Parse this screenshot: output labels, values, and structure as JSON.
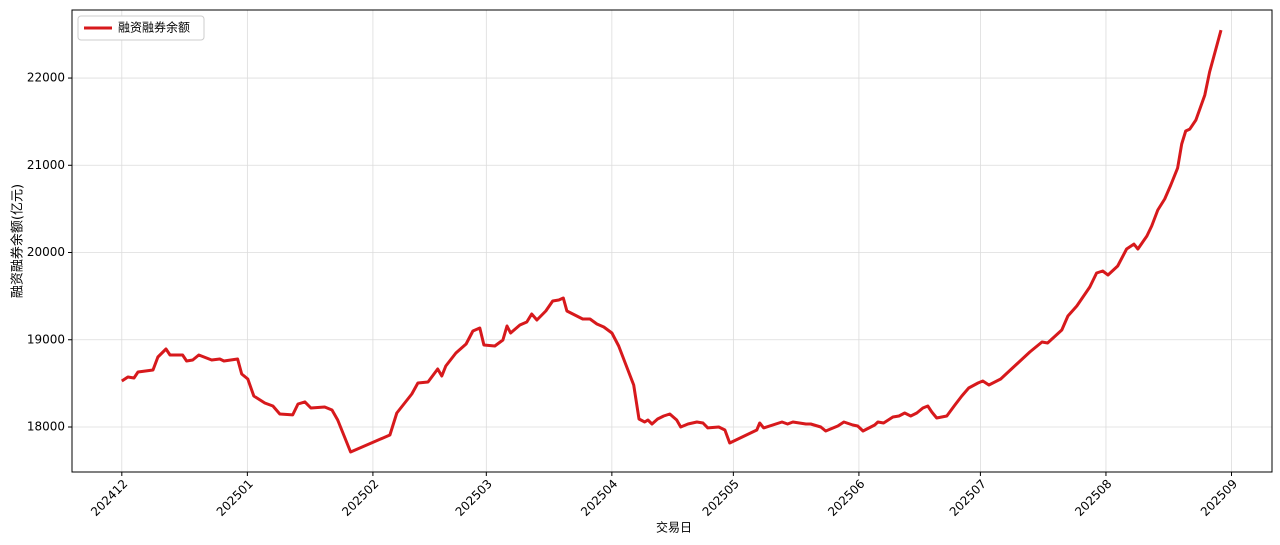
{
  "chart_data": {
    "type": "line",
    "ylabel": "融资融券余额(亿元)",
    "xlabel": "交易日",
    "x": [
      0,
      1.5,
      3,
      4,
      7.7,
      8.9,
      10.9,
      11.9,
      15,
      16,
      17.5,
      19,
      22.2,
      24.2,
      25.2,
      28.6,
      29.6,
      31.1,
      32.6,
      35.3,
      37.3,
      39,
      42.2,
      43.5,
      45.2,
      46.7,
      50.1,
      51.9,
      53.3,
      56.5,
      66.2,
      67.9,
      71.6,
      73.1,
      75.6,
      78,
      79,
      80,
      82.5,
      85,
      86.7,
      88.4,
      89.4,
      92.1,
      94.1,
      95.1,
      96,
      98.3,
      100,
      101.2,
      102.5,
      104.7,
      106.4,
      107.9,
      109,
      109.9,
      113.8,
      115.6,
      117.3,
      119,
      121,
      122.7,
      124.4,
      126.4,
      127.7,
      129.1,
      129.9,
      130.9,
      132.3,
      133.8,
      135.3,
      137,
      138,
      139.8,
      142,
      143.5,
      144.7,
      147.4,
      148.9,
      150.1,
      156.8,
      157.5,
      158.5,
      163,
      164.4,
      165.7,
      168.9,
      170.1,
      172.6,
      173.8,
      176.8,
      178.3,
      180.5,
      181.7,
      183,
      185.9,
      186.7,
      188.1,
      190.4,
      191.9,
      193.3,
      194.8,
      196.3,
      197.8,
      199,
      200,
      201.2,
      203.7,
      205.7,
      207.4,
      209.1,
      211.4,
      212.6,
      214.1,
      217,
      220.2,
      224.2,
      227.2,
      228.6,
      232.1,
      233.6,
      235.8,
      239,
      240.7,
      242.2,
      243.5,
      245.9,
      248.1,
      249.9,
      250.9,
      253.1,
      254.3,
      255.8,
      257.5,
      259,
      260.7,
      261.7,
      262.7,
      263.7,
      265.2,
      267.4,
      268.6,
      269.6,
      271.4
    ],
    "series": [
      {
        "name": "融资融券余额",
        "color": "#d7191c",
        "values": [
          18527,
          18573,
          18562,
          18630,
          18653,
          18802,
          18894,
          18825,
          18825,
          18756,
          18768,
          18825,
          18768,
          18779,
          18756,
          18779,
          18607,
          18550,
          18355,
          18275,
          18240,
          18149,
          18138,
          18264,
          18287,
          18218,
          18229,
          18195,
          18080,
          17713,
          17908,
          18160,
          18378,
          18504,
          18516,
          18665,
          18585,
          18699,
          18848,
          18951,
          19100,
          19135,
          18940,
          18928,
          18997,
          19158,
          19077,
          19169,
          19203,
          19295,
          19226,
          19330,
          19444,
          19456,
          19479,
          19330,
          19238,
          19238,
          19180,
          19146,
          19077,
          18928,
          18722,
          18481,
          18092,
          18057,
          18080,
          18034,
          18092,
          18126,
          18149,
          18080,
          18000,
          18034,
          18057,
          18046,
          17989,
          18000,
          17966,
          17817,
          17966,
          18046,
          17989,
          18057,
          18034,
          18057,
          18034,
          18034,
          18000,
          17954,
          18011,
          18057,
          18023,
          18011,
          17954,
          18023,
          18057,
          18046,
          18115,
          18126,
          18160,
          18126,
          18160,
          18218,
          18240,
          18172,
          18103,
          18126,
          18252,
          18355,
          18447,
          18504,
          18527,
          18481,
          18550,
          18688,
          18860,
          18974,
          18963,
          19112,
          19272,
          19387,
          19605,
          19765,
          19788,
          19742,
          19845,
          20040,
          20097,
          20040,
          20189,
          20304,
          20487,
          20613,
          20774,
          20968,
          21244,
          21393,
          21415,
          21519,
          21805,
          22069,
          22241,
          22550
        ]
      }
    ],
    "xlim": [
      -12.3,
      284
    ],
    "xticks": [
      {
        "value": 0,
        "label": "202412"
      },
      {
        "value": 31,
        "label": "202501"
      },
      {
        "value": 62,
        "label": "202502"
      },
      {
        "value": 90,
        "label": "202503"
      },
      {
        "value": 121,
        "label": "202504"
      },
      {
        "value": 151,
        "label": "202505"
      },
      {
        "value": 182,
        "label": "202506"
      },
      {
        "value": 212,
        "label": "202507"
      },
      {
        "value": 243,
        "label": "202508"
      },
      {
        "value": 274,
        "label": "202509"
      }
    ],
    "ylim": [
      17484,
      22780
    ],
    "yticks": [
      18000,
      19000,
      20000,
      21000,
      22000
    ],
    "grid": true,
    "legend": "upper left"
  }
}
